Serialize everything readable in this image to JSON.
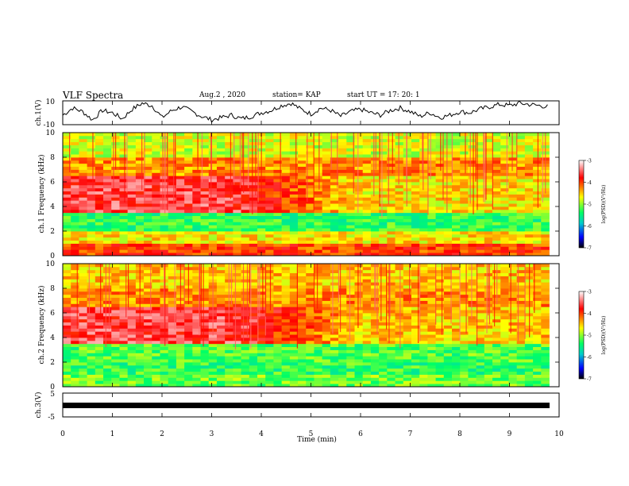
{
  "header": {
    "title": "VLF Spectra",
    "date": "Aug.2 , 2020",
    "station": "station= KAP",
    "start_ut": "start UT = 17: 20: 1"
  },
  "colors": {
    "scale_top": "#ffffff",
    "scale_high": "#ff0000",
    "scale_mid_high": "#ffff00",
    "scale_mid": "#00ff66",
    "scale_mid_low": "#00cccc",
    "scale_low": "#0000ff",
    "scale_bottom": "#000000",
    "trace": "#000000"
  },
  "chart_data": [
    {
      "type": "line",
      "panel": "ch1-waveform",
      "ylabel": "ch.1(V)",
      "ylim": [
        -10,
        10
      ],
      "yticklabels": [
        "10",
        "-10"
      ],
      "xlim": [
        0,
        10
      ],
      "x_extent_min": [
        0,
        9.8
      ],
      "series": [
        {
          "x": [
            0,
            0.2,
            0.4,
            0.6,
            0.8,
            1.0,
            1.2,
            1.4,
            1.6,
            1.8,
            2.0,
            2.2,
            2.4,
            2.6,
            2.8,
            3.0,
            3.2,
            3.4,
            3.6,
            3.8,
            4.0,
            4.2,
            4.4,
            4.6,
            4.8,
            5.0,
            5.2,
            5.4,
            5.6,
            5.8,
            6.0,
            6.2,
            6.4,
            6.6,
            6.8,
            7.0,
            7.2,
            7.4,
            7.6,
            7.8,
            8.0,
            8.2,
            8.4,
            8.6,
            8.8,
            9.0,
            9.2,
            9.4,
            9.6,
            9.8
          ],
          "values": [
            -2,
            4,
            1,
            -6,
            2,
            0,
            -5,
            3,
            8,
            6,
            -4,
            2,
            5,
            1,
            -3,
            -6,
            -4,
            -2,
            -5,
            -3,
            0,
            2,
            6,
            8,
            3,
            -1,
            4,
            2,
            -3,
            1,
            3,
            0,
            -2,
            2,
            4,
            1,
            -3,
            0,
            -4,
            -2,
            1,
            0,
            3,
            5,
            7,
            6,
            8,
            7,
            6,
            5
          ]
        }
      ]
    },
    {
      "type": "heatmap",
      "panel": "ch1-spectrogram",
      "ylabel": "ch.1 Frequency (kHz)",
      "ylim": [
        0,
        10
      ],
      "yticks": [
        0,
        2,
        4,
        6,
        8,
        10
      ],
      "xlim": [
        0,
        10
      ],
      "x_extent_min": [
        0,
        9.8
      ],
      "color_scale": {
        "label": "log(PSD)(V²/Hz)",
        "range": [
          -7,
          -3
        ],
        "ticks": [
          -3,
          -4,
          -5,
          -6,
          -7
        ]
      },
      "bands": [
        {
          "f_min": 0,
          "f_max": 1,
          "log_psd": -4.0
        },
        {
          "f_min": 1,
          "f_max": 2,
          "log_psd": -4.6
        },
        {
          "f_min": 2,
          "f_max": 3.5,
          "log_psd": -5.3
        },
        {
          "f_min": 3.5,
          "f_max": 6.5,
          "log_psd_early": -3.6,
          "log_psd_late": -4.6
        },
        {
          "f_min": 6.5,
          "f_max": 8,
          "log_psd": -4.3
        },
        {
          "f_min": 8,
          "f_max": 10,
          "log_psd": -4.8
        }
      ]
    },
    {
      "type": "heatmap",
      "panel": "ch2-spectrogram",
      "ylabel": "ch.2 Frequency (kHz)",
      "ylim": [
        0,
        10
      ],
      "yticks": [
        0,
        2,
        4,
        6,
        8,
        10
      ],
      "xlim": [
        0,
        10
      ],
      "x_extent_min": [
        0,
        9.8
      ],
      "color_scale": {
        "label": "log(PSD)(V²/Hz)",
        "range": [
          -7,
          -3
        ],
        "ticks": [
          -3,
          -4,
          -5,
          -6,
          -7
        ]
      },
      "bands": [
        {
          "f_min": 0,
          "f_max": 1,
          "log_psd": -5.1
        },
        {
          "f_min": 1,
          "f_max": 2,
          "log_psd": -5.3
        },
        {
          "f_min": 2,
          "f_max": 3.5,
          "log_psd": -5.2
        },
        {
          "f_min": 3.5,
          "f_max": 6.5,
          "log_psd_early": -3.6,
          "log_psd_late": -4.5
        },
        {
          "f_min": 6.5,
          "f_max": 8,
          "log_psd": -4.3
        },
        {
          "f_min": 8,
          "f_max": 10,
          "log_psd": -4.5
        }
      ]
    },
    {
      "type": "line",
      "panel": "ch3-waveform",
      "ylabel": "ch.3(V)",
      "ylim": [
        -5,
        5
      ],
      "yticklabels": [
        "5",
        "-5"
      ],
      "xlim": [
        0,
        10
      ],
      "x_extent_min": [
        0,
        9.8
      ],
      "series": [
        {
          "x": [
            0,
            9.8
          ],
          "values": [
            -1,
            -1
          ]
        }
      ]
    }
  ],
  "xaxis": {
    "label": "Time (min)",
    "ticks": [
      "0",
      "1",
      "2",
      "3",
      "4",
      "5",
      "6",
      "7",
      "8",
      "9",
      "10"
    ]
  }
}
